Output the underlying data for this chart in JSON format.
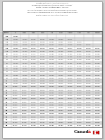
{
  "col_headers": [
    "Temp",
    "0",
    "0.25",
    "0.50",
    "0.75",
    "1.0",
    "1.25",
    "1.5ml",
    "1.75",
    "2.0",
    "2.5ml"
  ],
  "table_data": [
    [
      -20,
      1.0281,
      null,
      null,
      null,
      null,
      null,
      null,
      null,
      null,
      null
    ],
    [
      -18,
      1.0263,
      1.0264,
      1.0265,
      1.0267,
      1.0268,
      1.0269,
      1.0271,
      null,
      null,
      null
    ],
    [
      -16,
      1.0245,
      1.0246,
      1.0247,
      1.0249,
      1.025,
      1.0251,
      1.0253,
      1.0254,
      null,
      null
    ],
    [
      -14,
      1.0227,
      1.0228,
      1.0229,
      1.0231,
      1.0232,
      1.0233,
      1.0235,
      1.0236,
      1.0237,
      null
    ],
    [
      -12,
      1.0209,
      1.021,
      1.0212,
      1.0213,
      1.0214,
      1.0216,
      1.0217,
      1.0218,
      1.022,
      1.0221
    ],
    [
      -10,
      1.0192,
      1.0193,
      1.0194,
      1.0196,
      1.0197,
      1.0198,
      1.02,
      1.0201,
      1.0202,
      1.0204
    ],
    [
      -8,
      1.0174,
      1.0176,
      1.0177,
      1.0178,
      1.018,
      1.0181,
      1.0182,
      1.0184,
      1.0185,
      1.0186
    ],
    [
      -6,
      1.0157,
      1.0158,
      1.016,
      1.0161,
      1.0162,
      1.0164,
      1.0165,
      1.0166,
      1.0168,
      1.0169
    ],
    [
      -4,
      1.014,
      1.0141,
      1.0143,
      1.0144,
      1.0145,
      1.0147,
      1.0148,
      1.0149,
      1.0151,
      1.0152
    ],
    [
      -2,
      1.0123,
      1.0124,
      1.0126,
      1.0127,
      1.0128,
      1.013,
      1.0131,
      1.0132,
      1.0134,
      1.0135
    ],
    [
      0,
      1.0106,
      1.0107,
      1.0109,
      1.011,
      1.0111,
      1.0113,
      1.0114,
      1.0115,
      1.0117,
      1.0118
    ],
    [
      2,
      1.0089,
      1.009,
      1.0092,
      1.0093,
      1.0094,
      1.0096,
      1.0097,
      1.0098,
      1.01,
      1.0101
    ],
    [
      4,
      1.0072,
      1.0073,
      1.0075,
      1.0076,
      1.0077,
      1.0079,
      1.008,
      1.0081,
      1.0083,
      1.0084
    ],
    [
      6,
      1.0055,
      1.0056,
      1.0058,
      1.0059,
      1.006,
      1.0062,
      1.0063,
      1.0064,
      1.0066,
      1.0067
    ],
    [
      8,
      1.0038,
      1.0039,
      1.0041,
      1.0042,
      1.0043,
      1.0045,
      1.0046,
      1.0047,
      1.0049,
      1.005
    ],
    [
      10,
      1.0021,
      1.0022,
      1.0024,
      1.0025,
      1.0026,
      1.0028,
      1.0029,
      1.003,
      1.0032,
      1.0033
    ],
    [
      12,
      1.0004,
      1.0006,
      1.0007,
      1.0008,
      1.001,
      1.0011,
      1.0012,
      1.0014,
      1.0015,
      1.0016
    ],
    [
      14,
      0.9988,
      0.9989,
      0.999,
      0.9992,
      0.9993,
      0.9994,
      0.9996,
      0.9997,
      0.9998,
      1.0
    ],
    [
      16,
      0.9971,
      0.9972,
      0.9974,
      0.9975,
      0.9976,
      0.9978,
      0.9979,
      0.998,
      0.9982,
      0.9983
    ],
    [
      18,
      0.9954,
      0.9956,
      0.9957,
      0.9958,
      0.996,
      0.9961,
      0.9962,
      0.9964,
      0.9965,
      0.9966
    ],
    [
      20,
      0.9938,
      0.9939,
      0.9941,
      0.9942,
      0.9943,
      0.9945,
      0.9946,
      0.9947,
      0.9949,
      0.995
    ],
    [
      22,
      0.9922,
      0.9923,
      0.9924,
      0.9926,
      0.9927,
      0.9928,
      0.993,
      0.9931,
      0.9932,
      0.9934
    ],
    [
      24,
      0.9905,
      0.9907,
      0.9908,
      0.9909,
      0.9911,
      0.9912,
      0.9913,
      0.9915,
      0.9916,
      0.9917
    ],
    [
      26,
      0.9889,
      0.989,
      0.9892,
      0.9893,
      0.9894,
      0.9896,
      0.9897,
      0.9898,
      0.99,
      0.9901
    ],
    [
      28,
      0.9873,
      0.9874,
      0.9876,
      0.9877,
      0.9878,
      0.988,
      0.9881,
      0.9882,
      0.9884,
      0.9885
    ],
    [
      30,
      0.9857,
      0.9858,
      0.986,
      0.9861,
      0.9862,
      0.9864,
      0.9865,
      0.9866,
      0.9868,
      0.9869
    ],
    [
      32,
      0.9841,
      0.9842,
      0.9844,
      0.9845,
      0.9846,
      0.9848,
      0.9849,
      0.985,
      0.9852,
      0.9853
    ],
    [
      34,
      0.9825,
      0.9826,
      0.9828,
      0.9829,
      0.983,
      0.9832,
      0.9833,
      0.9834,
      0.9836,
      0.9837
    ],
    [
      36,
      0.9809,
      0.981,
      0.9812,
      0.9813,
      0.9814,
      0.9816,
      0.9817,
      0.9818,
      0.982,
      0.9821
    ],
    [
      38,
      0.9793,
      0.9795,
      0.9796,
      0.9797,
      0.9799,
      0.98,
      0.9801,
      0.9803,
      0.9804,
      0.9805
    ],
    [
      40,
      0.9777,
      0.9779,
      0.978,
      0.9781,
      0.9783,
      0.9784,
      0.9785,
      0.9787,
      0.9788,
      0.9789
    ]
  ],
  "page_color": "#ffffff",
  "page_shadow": "#e0e0e0",
  "header_bg": "#cccccc",
  "alt_row_bg": "#d8d8d8",
  "border_color": "#aaaaaa",
  "text_color": "#111111",
  "canada_red": "#cc0000",
  "header_lines": [
    "Correction Factors(x 10⁰) - Correction Column(x 10⁰)",
    "For diesel fuel, petroleum products having a density > 900 kg/m³",
    "Gazette - April 2011 - Entrée en vigueur - April 2011",
    "For use with all grades of diesel and diesel-type blended fuels, including diesel",
    "Pour l'usage avec tous les grades de diesel, y compris le diesel à l'emploi divers",
    "Refer to Schedule 4-10 - Renvoyés au tableau 4-10"
  ]
}
